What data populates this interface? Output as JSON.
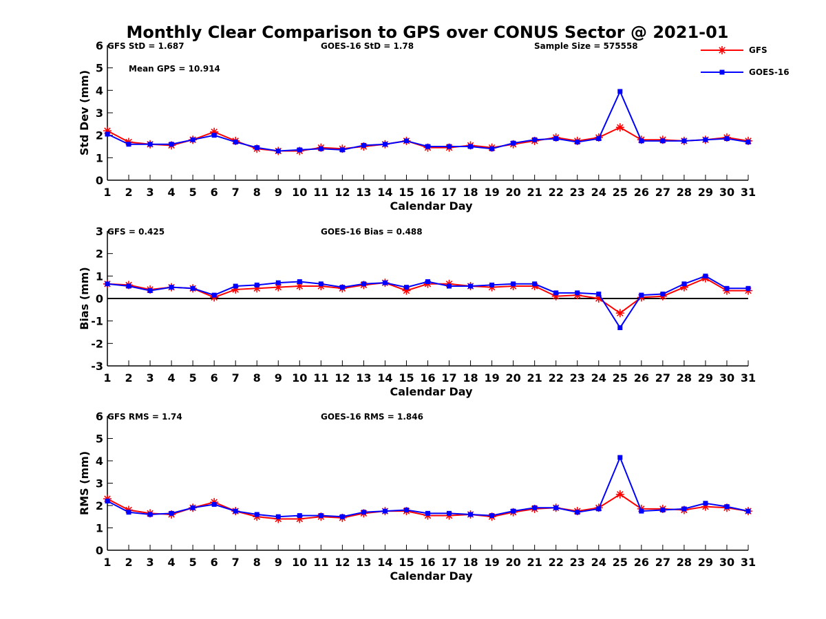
{
  "title": "Monthly Clear Comparison to GPS over CONUS Sector @ 2021-01",
  "legend": [
    {
      "name": "GFS",
      "color": "#ff0000",
      "marker": "star"
    },
    {
      "name": "GOES-16",
      "color": "#0000ff",
      "marker": "square"
    }
  ],
  "chart_data": [
    {
      "type": "line",
      "title": "Monthly Clear Comparison to GPS over CONUS Sector @ 2021-01",
      "xlabel": "Calendar Day",
      "ylabel": "Std Dev (mm)",
      "xlim": [
        1,
        31
      ],
      "ylim": [
        0,
        6
      ],
      "yticks": [
        0,
        1,
        2,
        3,
        4,
        5,
        6
      ],
      "x": [
        1,
        2,
        3,
        4,
        5,
        6,
        7,
        8,
        9,
        10,
        11,
        12,
        13,
        14,
        15,
        16,
        17,
        18,
        19,
        20,
        21,
        22,
        23,
        24,
        25,
        26,
        27,
        28,
        29,
        30,
        31
      ],
      "annotations": [
        "GFS StD = 1.687",
        "GOES-16 StD = 1.78",
        "Sample Size = 575558",
        "Mean GPS = 10.914"
      ],
      "series": [
        {
          "name": "GFS",
          "values": [
            2.2,
            1.7,
            1.6,
            1.55,
            1.8,
            2.15,
            1.75,
            1.4,
            1.3,
            1.3,
            1.45,
            1.4,
            1.5,
            1.6,
            1.75,
            1.45,
            1.45,
            1.55,
            1.45,
            1.6,
            1.75,
            1.9,
            1.75,
            1.9,
            2.35,
            1.8,
            1.8,
            1.75,
            1.8,
            1.9,
            1.75
          ]
        },
        {
          "name": "GOES-16",
          "values": [
            2.05,
            1.6,
            1.6,
            1.6,
            1.8,
            2.0,
            1.7,
            1.45,
            1.3,
            1.35,
            1.4,
            1.35,
            1.55,
            1.6,
            1.75,
            1.5,
            1.5,
            1.5,
            1.4,
            1.65,
            1.8,
            1.85,
            1.7,
            1.85,
            3.95,
            1.75,
            1.75,
            1.75,
            1.8,
            1.85,
            1.7
          ]
        }
      ]
    },
    {
      "type": "line",
      "xlabel": "Calendar Day",
      "ylabel": "Bias (mm)",
      "xlim": [
        1,
        31
      ],
      "ylim": [
        -3,
        3
      ],
      "yticks": [
        -3,
        -2,
        -1,
        0,
        1,
        2,
        3
      ],
      "zero_line": true,
      "x": [
        1,
        2,
        3,
        4,
        5,
        6,
        7,
        8,
        9,
        10,
        11,
        12,
        13,
        14,
        15,
        16,
        17,
        18,
        19,
        20,
        21,
        22,
        23,
        24,
        25,
        26,
        27,
        28,
        29,
        30,
        31
      ],
      "annotations": [
        "GFS = 0.425",
        "GOES-16 Bias = 0.488"
      ],
      "series": [
        {
          "name": "GFS",
          "values": [
            0.65,
            0.6,
            0.4,
            0.5,
            0.45,
            0.05,
            0.4,
            0.45,
            0.5,
            0.55,
            0.55,
            0.45,
            0.6,
            0.7,
            0.35,
            0.65,
            0.65,
            0.55,
            0.5,
            0.55,
            0.55,
            0.1,
            0.15,
            0.0,
            -0.65,
            0.05,
            0.1,
            0.5,
            0.9,
            0.35,
            0.35
          ]
        },
        {
          "name": "GOES-16",
          "values": [
            0.65,
            0.55,
            0.35,
            0.5,
            0.45,
            0.15,
            0.55,
            0.6,
            0.7,
            0.75,
            0.65,
            0.5,
            0.65,
            0.7,
            0.5,
            0.75,
            0.55,
            0.55,
            0.6,
            0.65,
            0.65,
            0.25,
            0.25,
            0.2,
            -1.3,
            0.15,
            0.2,
            0.65,
            1.0,
            0.45,
            0.45
          ]
        }
      ]
    },
    {
      "type": "line",
      "xlabel": "Calendar Day",
      "ylabel": "RMS (mm)",
      "xlim": [
        1,
        31
      ],
      "ylim": [
        0,
        6
      ],
      "yticks": [
        0,
        1,
        2,
        3,
        4,
        5,
        6
      ],
      "x": [
        1,
        2,
        3,
        4,
        5,
        6,
        7,
        8,
        9,
        10,
        11,
        12,
        13,
        14,
        15,
        16,
        17,
        18,
        19,
        20,
        21,
        22,
        23,
        24,
        25,
        26,
        27,
        28,
        29,
        30,
        31
      ],
      "annotations": [
        "GFS RMS = 1.74",
        "GOES-16 RMS = 1.846"
      ],
      "series": [
        {
          "name": "GFS",
          "values": [
            2.3,
            1.8,
            1.65,
            1.6,
            1.9,
            2.15,
            1.75,
            1.5,
            1.4,
            1.4,
            1.5,
            1.45,
            1.65,
            1.75,
            1.75,
            1.55,
            1.55,
            1.6,
            1.5,
            1.7,
            1.85,
            1.9,
            1.75,
            1.9,
            2.5,
            1.85,
            1.85,
            1.8,
            1.95,
            1.9,
            1.75
          ]
        },
        {
          "name": "GOES-16",
          "values": [
            2.2,
            1.7,
            1.6,
            1.65,
            1.9,
            2.05,
            1.75,
            1.6,
            1.5,
            1.55,
            1.55,
            1.5,
            1.7,
            1.75,
            1.8,
            1.65,
            1.65,
            1.6,
            1.55,
            1.75,
            1.9,
            1.9,
            1.7,
            1.85,
            4.15,
            1.75,
            1.8,
            1.85,
            2.1,
            1.95,
            1.75
          ]
        }
      ]
    }
  ]
}
